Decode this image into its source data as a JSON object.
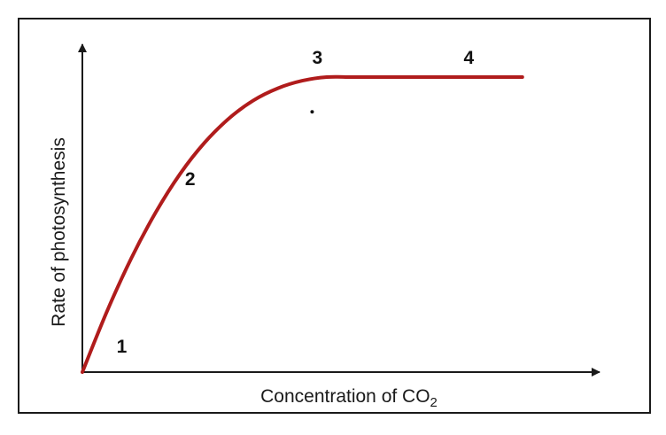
{
  "chart_data": {
    "type": "line",
    "title": "",
    "xlabel": "Concentration of CO",
    "xlabel_subscript": "2",
    "ylabel": "Rate of photosynthesis",
    "x_ticks": "none",
    "y_ticks": "none",
    "grid": false,
    "legend": "none",
    "line_color": "#b01c1c",
    "axis_color": "#1a1a1a",
    "border": true,
    "xlim": [
      0,
      10
    ],
    "ylim": [
      0,
      10
    ],
    "series": [
      {
        "x": [
          0,
          0.5,
          1,
          1.5,
          2,
          2.5,
          3,
          3.5,
          4,
          4.5,
          5,
          5.5,
          6,
          6.5,
          7,
          7.5,
          8,
          8.5,
          9
        ],
        "values": [
          0,
          1.84,
          3.47,
          4.87,
          6.05,
          7.0,
          7.74,
          8.29,
          8.66,
          8.89,
          9.0,
          9.0,
          9.0,
          9.0,
          9.0,
          9.0,
          9.0,
          9.0,
          9.0
        ]
      }
    ],
    "annotations": [
      {
        "text": "1",
        "x": 0.7,
        "y": 0.6
      },
      {
        "text": "2",
        "x": 2.1,
        "y": 5.7
      },
      {
        "text": "3",
        "x": 4.7,
        "y": 9.4
      },
      {
        "text": "4",
        "x": 7.8,
        "y": 9.4
      }
    ],
    "marker_points": [
      {
        "x": 4.7,
        "y": 7.94
      }
    ]
  }
}
